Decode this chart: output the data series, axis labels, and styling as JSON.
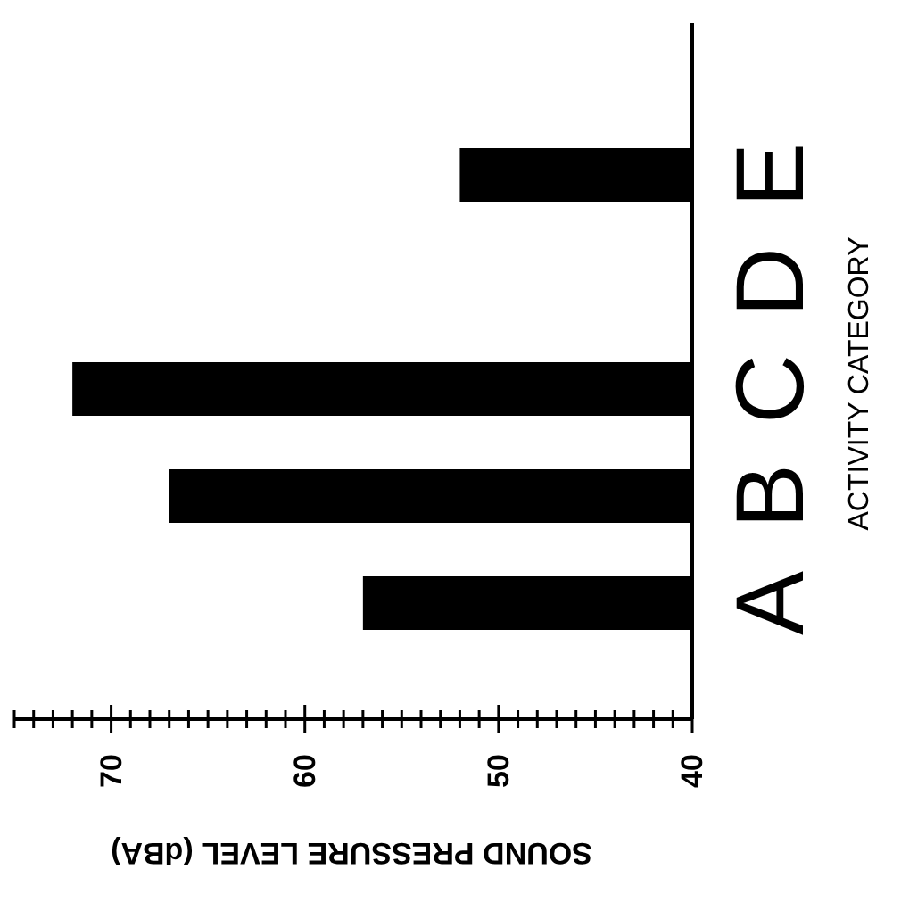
{
  "chart_data": {
    "type": "bar",
    "orientation": "horizontal",
    "xlabel": "SOUND PRESSURE LEVEL (dBA)",
    "ylabel": "ACTIVITY CATEGORY",
    "categories": [
      "E",
      "D",
      "C",
      "B",
      "A"
    ],
    "values": [
      52,
      null,
      72,
      67,
      57
    ],
    "color": "#000000",
    "xlim": [
      75,
      40
    ],
    "xticks": [
      40,
      {
        "value": 41,
        "label": null
      },
      {
        "value": 42,
        "label": null
      },
      {
        "value": 43,
        "label": null
      },
      {
        "value": 44,
        "label": null
      },
      {
        "value": 45,
        "label": null
      },
      {
        "value": 46,
        "label": null
      },
      {
        "value": 47,
        "label": null
      },
      {
        "value": 48,
        "label": null
      },
      {
        "value": 49,
        "label": null
      },
      50,
      {
        "value": 51,
        "label": null
      },
      {
        "value": 52,
        "label": null
      },
      {
        "value": 53,
        "label": null
      },
      {
        "value": 54,
        "label": null
      },
      {
        "value": 55,
        "label": null
      },
      {
        "value": 56,
        "label": null
      },
      {
        "value": 57,
        "label": null
      },
      {
        "value": 58,
        "label": null
      },
      {
        "value": 59,
        "label": null
      },
      60,
      {
        "value": 61,
        "label": null
      },
      {
        "value": 62,
        "label": null
      },
      {
        "value": 63,
        "label": null
      },
      {
        "value": 64,
        "label": null
      },
      {
        "value": 65,
        "label": null
      },
      {
        "value": 66,
        "label": null
      },
      {
        "value": 67,
        "label": null
      },
      {
        "value": 68,
        "label": null
      },
      {
        "value": 69,
        "label": null
      },
      70,
      {
        "value": 71,
        "label": null
      },
      {
        "value": 72,
        "label": null
      },
      {
        "value": 73,
        "label": null
      },
      {
        "value": 74,
        "label": null
      },
      {
        "value": 75,
        "label": null
      }
    ],
    "grid": false
  }
}
